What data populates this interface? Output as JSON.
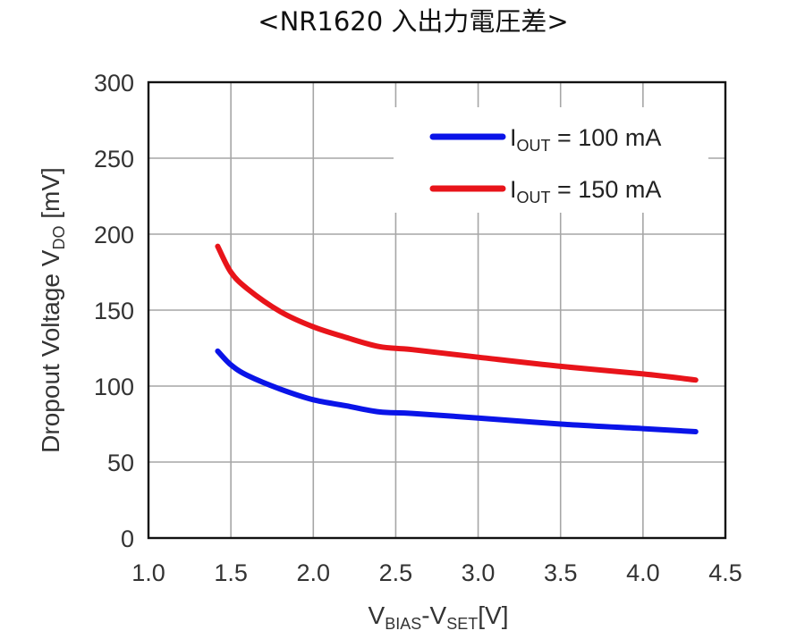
{
  "chart_data": {
    "type": "line",
    "title": "<NR1620 入出力電圧差>",
    "xlabel": {
      "main": "V",
      "sub1": "BIAS",
      "mid": "-V",
      "sub2": "SET",
      "unit": "[V]"
    },
    "ylabel": {
      "main": "Dropout Voltage V",
      "sub": "DO",
      "unit": " [mV]"
    },
    "xlim": [
      1.0,
      4.5
    ],
    "ylim": [
      0,
      300
    ],
    "x_ticks": [
      "1.0",
      "1.5",
      "2.0",
      "2.5",
      "3.0",
      "3.5",
      "4.0",
      "4.5"
    ],
    "y_ticks": [
      "0",
      "50",
      "100",
      "150",
      "200",
      "250",
      "300"
    ],
    "grid": true,
    "legend_position": "top-right",
    "series": [
      {
        "name": "IOUT = 100 mA",
        "legend": {
          "main": "I",
          "sub": "OUT",
          "rest": " = 100 mA"
        },
        "color": "#0a14e8",
        "x": [
          1.42,
          1.5,
          1.6,
          1.8,
          2.0,
          2.2,
          2.4,
          2.6,
          3.0,
          3.5,
          4.0,
          4.32
        ],
        "y": [
          123,
          114,
          107,
          98,
          91,
          87,
          83,
          82,
          79,
          75,
          72,
          70
        ]
      },
      {
        "name": "IOUT = 150 mA",
        "legend": {
          "main": "I",
          "sub": "OUT",
          "rest": " = 150 mA"
        },
        "color": "#e8141a",
        "x": [
          1.42,
          1.5,
          1.6,
          1.8,
          2.0,
          2.2,
          2.4,
          2.6,
          3.0,
          3.5,
          4.0,
          4.32
        ],
        "y": [
          192,
          175,
          164,
          149,
          139,
          132,
          126,
          124,
          119,
          113,
          108,
          104
        ]
      }
    ]
  }
}
